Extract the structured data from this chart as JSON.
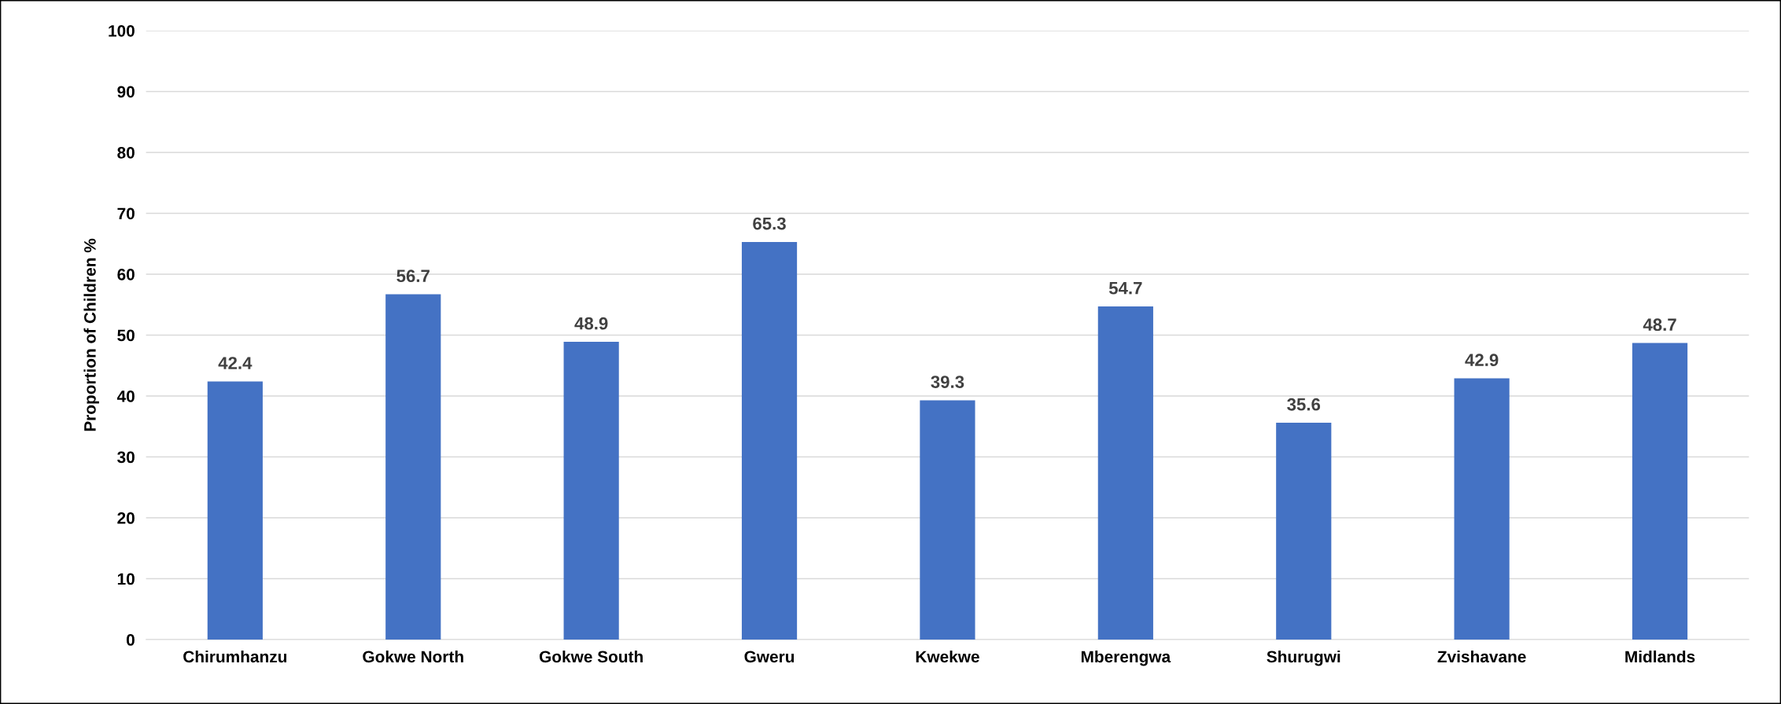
{
  "chart_data": {
    "type": "bar",
    "ylabel": "Proportion of Children %",
    "categories": [
      "Chirumhanzu",
      "Gokwe North",
      "Gokwe South",
      "Gweru",
      "Kwekwe",
      "Mberengwa",
      "Shurugwi",
      "Zvishavane",
      "Midlands"
    ],
    "values": [
      42.4,
      56.7,
      48.9,
      65.3,
      39.3,
      54.7,
      35.6,
      42.9,
      48.7
    ],
    "color": "#4472c4",
    "ylim": [
      0,
      100
    ],
    "yticks": [
      0,
      10,
      20,
      30,
      40,
      50,
      60,
      70,
      80,
      90,
      100
    ],
    "grid": "y",
    "data_labels": true
  }
}
